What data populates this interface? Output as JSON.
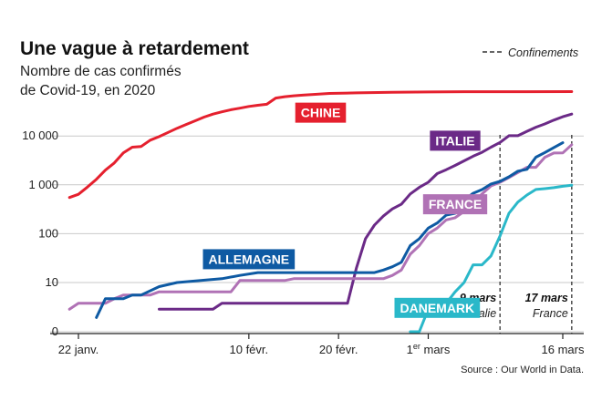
{
  "chart_data": {
    "type": "line",
    "title": "Une vague à retardement",
    "subtitle_lines": [
      "Nombre de cas confirmés",
      "de Covid-19, en 2020"
    ],
    "y_scale": "log",
    "y_ticks": [
      {
        "value": 0,
        "label": "0"
      },
      {
        "value": 10,
        "label": "10"
      },
      {
        "value": 100,
        "label": "100"
      },
      {
        "value": 1000,
        "label": "1 000"
      },
      {
        "value": 10000,
        "label": "10 000"
      }
    ],
    "x_ticks": [
      {
        "date": "2020-01-22",
        "label": "22 janv."
      },
      {
        "date": "2020-02-10",
        "label": "10 févr."
      },
      {
        "date": "2020-02-20",
        "label": "20 févr."
      },
      {
        "date": "2020-03-01",
        "label": "1",
        "sup": "er",
        "suffix": " mars"
      },
      {
        "date": "2020-03-16",
        "label": "16 mars"
      }
    ],
    "legend": {
      "label": "Confinements",
      "placement": "top-right"
    },
    "source": "Source : Our World in Data.",
    "confinements": [
      {
        "date": "2020-03-09",
        "label": "9 mars",
        "country": "Italie"
      },
      {
        "date": "2020-03-17",
        "label": "17 mars",
        "country": "France"
      }
    ],
    "series": [
      {
        "name": "CHINE",
        "color": "#e5202e",
        "label_date": "2020-02-18",
        "label_value": 30000,
        "points": [
          [
            "2020-01-21",
            550
          ],
          [
            "2020-01-22",
            640
          ],
          [
            "2020-01-23",
            900
          ],
          [
            "2020-01-24",
            1300
          ],
          [
            "2020-01-25",
            2000
          ],
          [
            "2020-01-26",
            2800
          ],
          [
            "2020-01-27",
            4500
          ],
          [
            "2020-01-28",
            5900
          ],
          [
            "2020-01-29",
            6100
          ],
          [
            "2020-01-30",
            8200
          ],
          [
            "2020-01-31",
            9700
          ],
          [
            "2020-02-01",
            11800
          ],
          [
            "2020-02-02",
            14400
          ],
          [
            "2020-02-03",
            17200
          ],
          [
            "2020-02-04",
            20400
          ],
          [
            "2020-02-05",
            24300
          ],
          [
            "2020-02-06",
            28000
          ],
          [
            "2020-02-07",
            31200
          ],
          [
            "2020-02-08",
            34500
          ],
          [
            "2020-02-09",
            37000
          ],
          [
            "2020-02-10",
            40200
          ],
          [
            "2020-02-11",
            42600
          ],
          [
            "2020-02-12",
            44600
          ],
          [
            "2020-02-13",
            59800
          ],
          [
            "2020-02-14",
            63800
          ],
          [
            "2020-02-15",
            66400
          ],
          [
            "2020-02-16",
            68500
          ],
          [
            "2020-02-17",
            70500
          ],
          [
            "2020-02-19",
            74200
          ],
          [
            "2020-02-22",
            76300
          ],
          [
            "2020-02-26",
            78200
          ],
          [
            "2020-03-01",
            79800
          ],
          [
            "2020-03-06",
            80500
          ],
          [
            "2020-03-12",
            80800
          ],
          [
            "2020-03-17",
            81000
          ]
        ]
      },
      {
        "name": "ITALIE",
        "color": "#6b2a87",
        "label_date": "2020-03-04",
        "label_value": 8000,
        "points": [
          [
            "2020-01-31",
            2
          ],
          [
            "2020-02-06",
            2
          ],
          [
            "2020-02-07",
            3
          ],
          [
            "2020-02-21",
            3
          ],
          [
            "2020-02-22",
            20
          ],
          [
            "2020-02-23",
            79
          ],
          [
            "2020-02-24",
            150
          ],
          [
            "2020-02-25",
            229
          ],
          [
            "2020-02-26",
            322
          ],
          [
            "2020-02-27",
            400
          ],
          [
            "2020-02-28",
            650
          ],
          [
            "2020-02-29",
            888
          ],
          [
            "2020-03-01",
            1128
          ],
          [
            "2020-03-02",
            1694
          ],
          [
            "2020-03-03",
            2036
          ],
          [
            "2020-03-04",
            2502
          ],
          [
            "2020-03-05",
            3089
          ],
          [
            "2020-03-06",
            3858
          ],
          [
            "2020-03-07",
            4636
          ],
          [
            "2020-03-08",
            5883
          ],
          [
            "2020-03-09",
            7375
          ],
          [
            "2020-03-10",
            10149
          ],
          [
            "2020-03-11",
            10149
          ],
          [
            "2020-03-12",
            12462
          ],
          [
            "2020-03-13",
            15113
          ],
          [
            "2020-03-14",
            17660
          ],
          [
            "2020-03-15",
            21157
          ],
          [
            "2020-03-16",
            24747
          ],
          [
            "2020-03-17",
            27980
          ]
        ]
      },
      {
        "name": "FRANCE",
        "color": "#b072b5",
        "label_date": "2020-03-04",
        "label_value": 400,
        "points": [
          [
            "2020-01-21",
            2
          ],
          [
            "2020-01-22",
            3
          ],
          [
            "2020-01-25",
            3
          ],
          [
            "2020-01-26",
            4
          ],
          [
            "2020-01-27",
            5
          ],
          [
            "2020-01-30",
            5
          ],
          [
            "2020-01-31",
            6
          ],
          [
            "2020-02-08",
            6
          ],
          [
            "2020-02-09",
            11
          ],
          [
            "2020-02-14",
            11
          ],
          [
            "2020-02-15",
            12
          ],
          [
            "2020-02-25",
            12
          ],
          [
            "2020-02-26",
            14
          ],
          [
            "2020-02-27",
            18
          ],
          [
            "2020-02-28",
            38
          ],
          [
            "2020-02-29",
            57
          ],
          [
            "2020-03-01",
            100
          ],
          [
            "2020-03-02",
            130
          ],
          [
            "2020-03-03",
            191
          ],
          [
            "2020-03-04",
            212
          ],
          [
            "2020-03-05",
            285
          ],
          [
            "2020-03-06",
            423
          ],
          [
            "2020-03-07",
            653
          ],
          [
            "2020-03-08",
            949
          ],
          [
            "2020-03-09",
            1126
          ],
          [
            "2020-03-10",
            1412
          ],
          [
            "2020-03-11",
            1784
          ],
          [
            "2020-03-12",
            2281
          ],
          [
            "2020-03-13",
            2281
          ],
          [
            "2020-03-14",
            3661
          ],
          [
            "2020-03-15",
            4469
          ],
          [
            "2020-03-16",
            4499
          ],
          [
            "2020-03-17",
            6633
          ]
        ]
      },
      {
        "name": "ALLEMAGNE",
        "color": "#0e5aa3",
        "label_date": "2020-02-10",
        "label_value": 30,
        "points": [
          [
            "2020-01-24",
            1
          ],
          [
            "2020-01-25",
            4
          ],
          [
            "2020-01-27",
            4
          ],
          [
            "2020-01-28",
            5
          ],
          [
            "2020-01-29",
            5
          ],
          [
            "2020-01-31",
            8
          ],
          [
            "2020-02-02",
            10
          ],
          [
            "2020-02-07",
            12
          ],
          [
            "2020-02-09",
            14
          ],
          [
            "2020-02-11",
            16
          ],
          [
            "2020-02-24",
            16
          ],
          [
            "2020-02-25",
            18
          ],
          [
            "2020-02-26",
            21
          ],
          [
            "2020-02-27",
            26
          ],
          [
            "2020-02-28",
            57
          ],
          [
            "2020-02-29",
            79
          ],
          [
            "2020-03-01",
            130
          ],
          [
            "2020-03-02",
            165
          ],
          [
            "2020-03-03",
            240
          ],
          [
            "2020-03-04",
            262
          ],
          [
            "2020-03-05",
            482
          ],
          [
            "2020-03-06",
            670
          ],
          [
            "2020-03-07",
            799
          ],
          [
            "2020-03-08",
            1040
          ],
          [
            "2020-03-09",
            1176
          ],
          [
            "2020-03-10",
            1457
          ],
          [
            "2020-03-11",
            1908
          ],
          [
            "2020-03-12",
            2078
          ],
          [
            "2020-03-13",
            3675
          ],
          [
            "2020-03-14",
            4585
          ],
          [
            "2020-03-15",
            5795
          ],
          [
            "2020-03-16",
            7272
          ]
        ]
      },
      {
        "name": "DANEMARK",
        "color": "#2ab8c9",
        "label_date": "2020-03-02",
        "label_value": 2.2,
        "points": [
          [
            "2020-02-28",
            0
          ],
          [
            "2020-02-29",
            0
          ],
          [
            "2020-03-01",
            2
          ],
          [
            "2020-03-03",
            3
          ],
          [
            "2020-03-04",
            6
          ],
          [
            "2020-03-05",
            10
          ],
          [
            "2020-03-06",
            23
          ],
          [
            "2020-03-07",
            23
          ],
          [
            "2020-03-08",
            35
          ],
          [
            "2020-03-09",
            90
          ],
          [
            "2020-03-10",
            262
          ],
          [
            "2020-03-11",
            444
          ],
          [
            "2020-03-12",
            617
          ],
          [
            "2020-03-13",
            804
          ],
          [
            "2020-03-14",
            836
          ],
          [
            "2020-03-15",
            875
          ],
          [
            "2020-03-16",
            933
          ],
          [
            "2020-03-17",
            977
          ]
        ]
      }
    ]
  }
}
